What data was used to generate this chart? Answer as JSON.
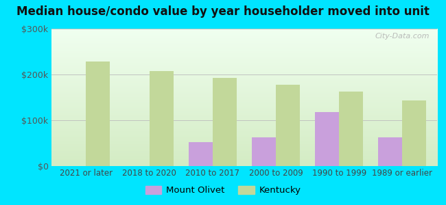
{
  "title": "Median house/condo value by year householder moved into unit",
  "categories": [
    "2021 or later",
    "2018 to 2020",
    "2010 to 2017",
    "2000 to 2009",
    "1990 to 1999",
    "1989 or earlier"
  ],
  "mount_olivet": [
    null,
    null,
    52000,
    62000,
    118000,
    62000
  ],
  "kentucky": [
    228000,
    207000,
    193000,
    178000,
    163000,
    143000
  ],
  "bar_color_olivet": "#c9a0dc",
  "bar_color_kentucky": "#c2d89a",
  "background_outer": "#00e5ff",
  "background_inner_top": "#f0fff0",
  "background_inner_bottom": "#d4ecc4",
  "ylim": [
    0,
    300000
  ],
  "yticks": [
    0,
    100000,
    200000,
    300000
  ],
  "ytick_labels": [
    "$0",
    "$100k",
    "$200k",
    "$300k"
  ],
  "legend_olivet": "Mount Olivet",
  "legend_kentucky": "Kentucky",
  "watermark": "City-Data.com",
  "bar_width": 0.38,
  "xlim_left": -0.55,
  "xlim_right": 5.55
}
